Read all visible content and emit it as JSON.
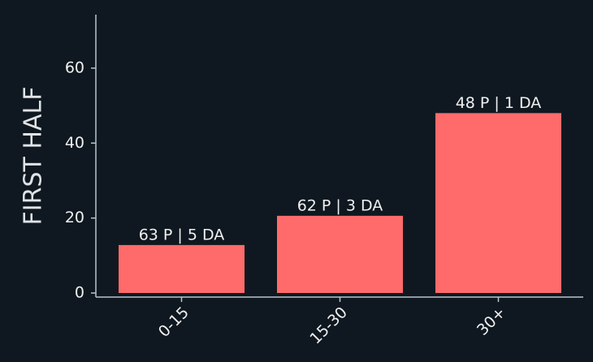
{
  "chart_data": {
    "type": "bar",
    "ylabel": "FIRST HALF",
    "categories": [
      "0-15",
      "15-30",
      "30+"
    ],
    "values": [
      12.8,
      20.6,
      48
    ],
    "annotations": [
      "63 P | 5 DA",
      "62 P | 3 DA",
      "48 P | 1 DA"
    ],
    "color": "#ff6b6b",
    "ylim": [
      -1,
      74
    ],
    "yticks": [
      0,
      20,
      40,
      60
    ],
    "grid": false
  }
}
